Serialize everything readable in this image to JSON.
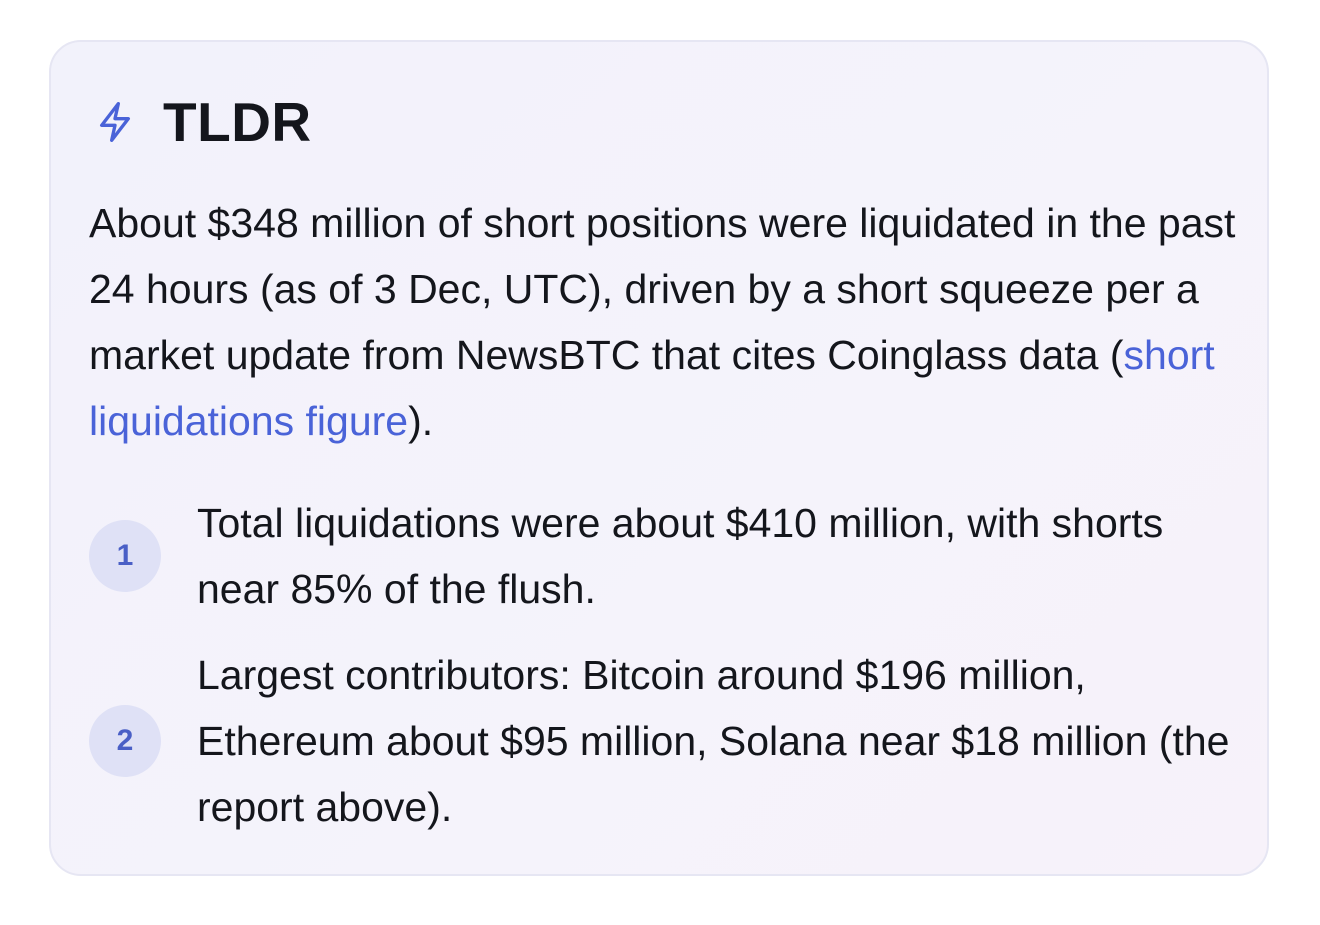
{
  "card": {
    "icon": "lightning-bolt-icon",
    "title": "TLDR",
    "summary": {
      "text_before": "About $348 million of short positions were liquidated in the past 24 hours (as of 3 Dec, UTC), driven by a short squeeze per a market update from NewsBTC that cites Coinglass data (",
      "link_text": "short liquidations figure",
      "text_after": ")."
    },
    "points": [
      {
        "number": "1",
        "text": "Total liquidations were about $410 million, with shorts near 85% of the flush."
      },
      {
        "number": "2",
        "text": "Largest contributors: Bitcoin around $196 million, Ethereum about $95 million, Solana near $18 million (the report above)."
      }
    ]
  },
  "colors": {
    "accent": "#4a63d8",
    "badge_bg": "#dfe1f6",
    "card_border": "#e6e6f3",
    "text": "#14161c"
  }
}
